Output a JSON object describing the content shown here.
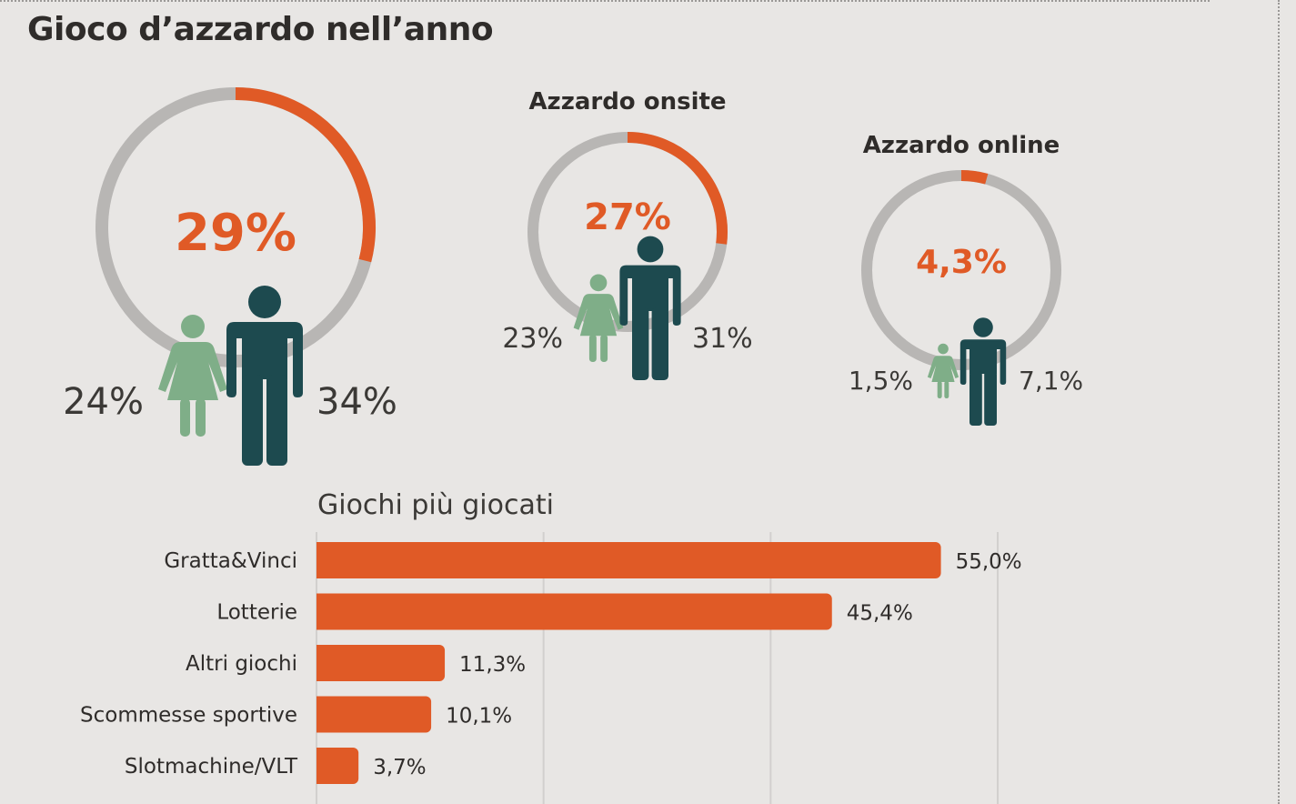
{
  "title": "Gioco d’azzardo nell’anno",
  "colors": {
    "accent": "#e05a26",
    "ring": "#b8b6b4",
    "female": "#7fae88",
    "male": "#1d4a4f"
  },
  "rings": [
    {
      "title": "",
      "total_pct": 29,
      "total_label": "29%",
      "female_label": "24%",
      "male_label": "34%"
    },
    {
      "title": "Azzardo onsite",
      "total_pct": 27,
      "total_label": "27%",
      "female_label": "23%",
      "male_label": "31%"
    },
    {
      "title": "Azzardo online",
      "total_pct": 4.3,
      "total_label": "4,3%",
      "female_label": "1,5%",
      "male_label": "7,1%"
    }
  ],
  "chart_data": {
    "type": "bar",
    "orientation": "horizontal",
    "title": "Giochi più giocati",
    "categories": [
      "Gratta&Vinci",
      "Lotterie",
      "Altri giochi",
      "Scommesse sportive",
      "Slotmachine/VLT"
    ],
    "values": [
      55.0,
      45.4,
      11.3,
      10.1,
      3.7
    ],
    "value_labels": [
      "55,0%",
      "45,4%",
      "11,3%",
      "10,1%",
      "3,7%"
    ],
    "xlim": [
      0,
      60
    ],
    "grid": true,
    "bar_color": "#e05a26"
  }
}
